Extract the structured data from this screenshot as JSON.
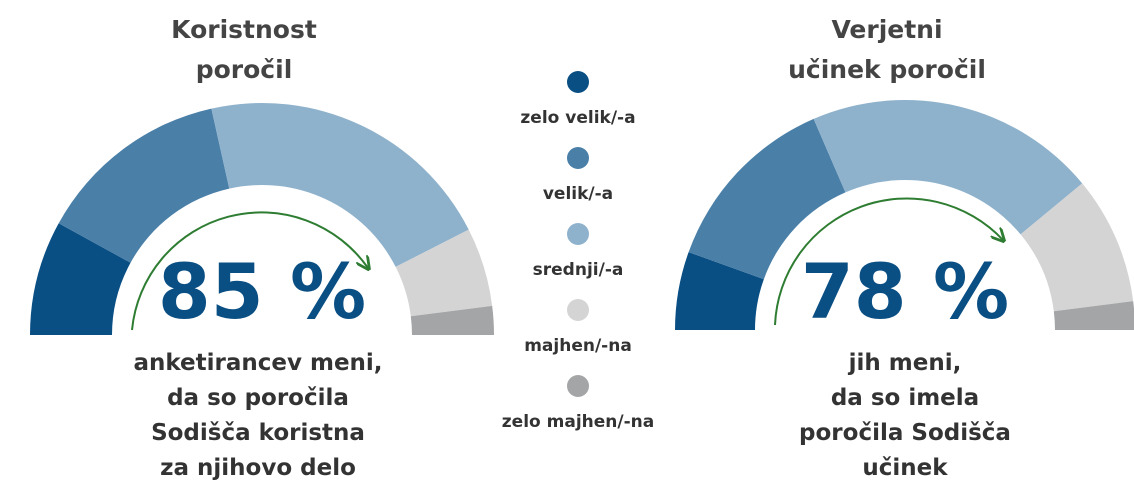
{
  "legend": {
    "categories": [
      "zelo velik/-a",
      "velik/-a",
      "srednji/-a",
      "majhen/-na",
      "zelo majhen/-na"
    ],
    "colors": [
      "#0a4f84",
      "#4a7fa8",
      "#8fb2cc",
      "#d4d4d4",
      "#a3a5a7"
    ]
  },
  "chart_data": [
    {
      "type": "gauge",
      "title": [
        "Koristnost",
        "poročil"
      ],
      "values": [
        16,
        27,
        42,
        11,
        4
      ],
      "annotation": "85 %",
      "description": [
        "anketirancev meni,",
        "da so poročila",
        "Sodišča koristna",
        "za njihovo delo"
      ]
    },
    {
      "type": "gauge",
      "title": [
        "Verjetni",
        "učinek poročil"
      ],
      "values": [
        11,
        26,
        41,
        18,
        4
      ],
      "annotation": "78 %",
      "description": [
        "jih meni,",
        "da so imela",
        "poročila Sodišča",
        "učinek"
      ]
    }
  ]
}
